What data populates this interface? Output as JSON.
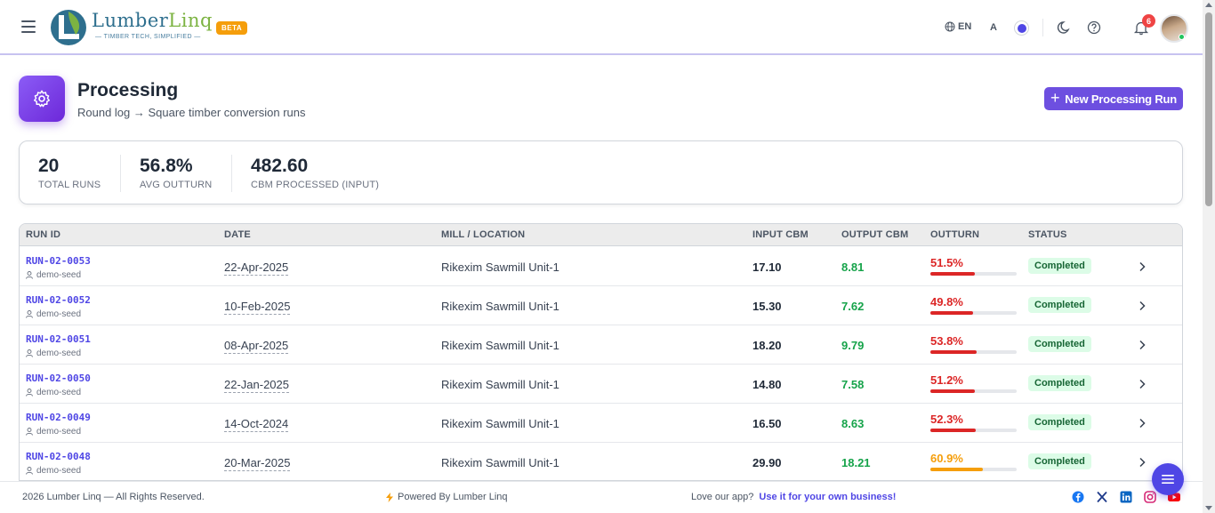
{
  "header": {
    "brand": {
      "name_part1": "Lumber",
      "name_part2": "Linq",
      "tagline": "— TIMBER TECH, SIMPLIFIED —"
    },
    "beta_label": "BETA",
    "language": "EN",
    "font_size_label": "A",
    "notification_count": "6"
  },
  "page": {
    "title": "Processing",
    "subtitle": "Round log → Square timber conversion runs",
    "new_button": "New Processing Run"
  },
  "stats": [
    {
      "value": "20",
      "label": "TOTAL RUNS"
    },
    {
      "value": "56.8%",
      "label": "AVG OUTTURN"
    },
    {
      "value": "482.60",
      "label": "CBM PROCESSED (INPUT)"
    }
  ],
  "table": {
    "columns": [
      "RUN ID",
      "DATE",
      "MILL / LOCATION",
      "INPUT CBM",
      "OUTPUT CBM",
      "OUTTURN",
      "STATUS"
    ],
    "rows": [
      {
        "run_id": "RUN-02-0053",
        "creator": "demo-seed",
        "date": "22-Apr-2025",
        "mill": "Rikexim Sawmill Unit-1",
        "input_cbm": "17.10",
        "output_cbm": "8.81",
        "outturn": "51.5%",
        "outturn_pct": 51.5,
        "status": "Completed"
      },
      {
        "run_id": "RUN-02-0052",
        "creator": "demo-seed",
        "date": "10-Feb-2025",
        "mill": "Rikexim Sawmill Unit-1",
        "input_cbm": "15.30",
        "output_cbm": "7.62",
        "outturn": "49.8%",
        "outturn_pct": 49.8,
        "status": "Completed"
      },
      {
        "run_id": "RUN-02-0051",
        "creator": "demo-seed",
        "date": "08-Apr-2025",
        "mill": "Rikexim Sawmill Unit-1",
        "input_cbm": "18.20",
        "output_cbm": "9.79",
        "outturn": "53.8%",
        "outturn_pct": 53.8,
        "status": "Completed"
      },
      {
        "run_id": "RUN-02-0050",
        "creator": "demo-seed",
        "date": "22-Jan-2025",
        "mill": "Rikexim Sawmill Unit-1",
        "input_cbm": "14.80",
        "output_cbm": "7.58",
        "outturn": "51.2%",
        "outturn_pct": 51.2,
        "status": "Completed"
      },
      {
        "run_id": "RUN-02-0049",
        "creator": "demo-seed",
        "date": "14-Oct-2024",
        "mill": "Rikexim Sawmill Unit-1",
        "input_cbm": "16.50",
        "output_cbm": "8.63",
        "outturn": "52.3%",
        "outturn_pct": 52.3,
        "status": "Completed"
      },
      {
        "run_id": "RUN-02-0048",
        "creator": "demo-seed",
        "date": "20-Mar-2025",
        "mill": "Rikexim Sawmill Unit-1",
        "input_cbm": "29.90",
        "output_cbm": "18.21",
        "outturn": "60.9%",
        "outturn_pct": 60.9,
        "status": "Completed"
      }
    ]
  },
  "footer": {
    "copyright": "2026 Lumber Linq — All Rights Reserved.",
    "powered": "Powered By Lumber Linq",
    "love_text": "Love our app?",
    "love_link": "Use it for your own business!"
  },
  "colors": {
    "accent": "#6d4fe0",
    "outturn_low": "#dc2626",
    "outturn_mid": "#f59e0b",
    "output_green": "#16a34a",
    "status_bg": "#dcfce7"
  },
  "icons": [
    "menu-icon",
    "globe-icon",
    "moon-icon",
    "help-icon",
    "bell-icon",
    "gear-icon",
    "user-icon",
    "chevron-right-icon",
    "bolt-icon",
    "facebook-icon",
    "x-icon",
    "linkedin-icon",
    "instagram-icon",
    "youtube-icon",
    "chat-icon"
  ]
}
